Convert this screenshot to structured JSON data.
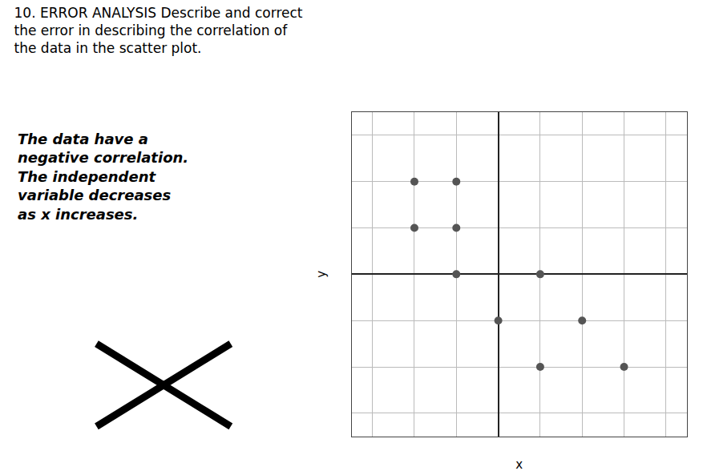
{
  "chart_data": {
    "type": "scatter",
    "title": "10. ERROR ANALYSIS Describe and correct\nthe error in describing the correlation of\nthe data in the scatter plot.",
    "annotations": [
      "The data have a",
      "negative correlation.",
      "The independent",
      "variable decreases",
      "as x increases."
    ],
    "x_label": "x",
    "y_label": "y",
    "x": [
      -2,
      -1,
      -2,
      -1,
      -1,
      1,
      0,
      2,
      1,
      3
    ],
    "values": [
      2,
      2,
      1,
      1,
      0,
      0,
      -1,
      -1,
      -2,
      -2
    ],
    "color": "#555555",
    "marker": "circle",
    "xlim": [
      -3.5,
      4.5
    ],
    "ylim": [
      -3.5,
      3.5
    ],
    "xticks": [
      -3,
      -2,
      -1,
      0,
      1,
      2,
      3,
      4
    ],
    "yticks": [
      -3,
      -2,
      -1,
      0,
      1,
      2,
      3
    ],
    "grid": true,
    "tick_labels": false
  }
}
